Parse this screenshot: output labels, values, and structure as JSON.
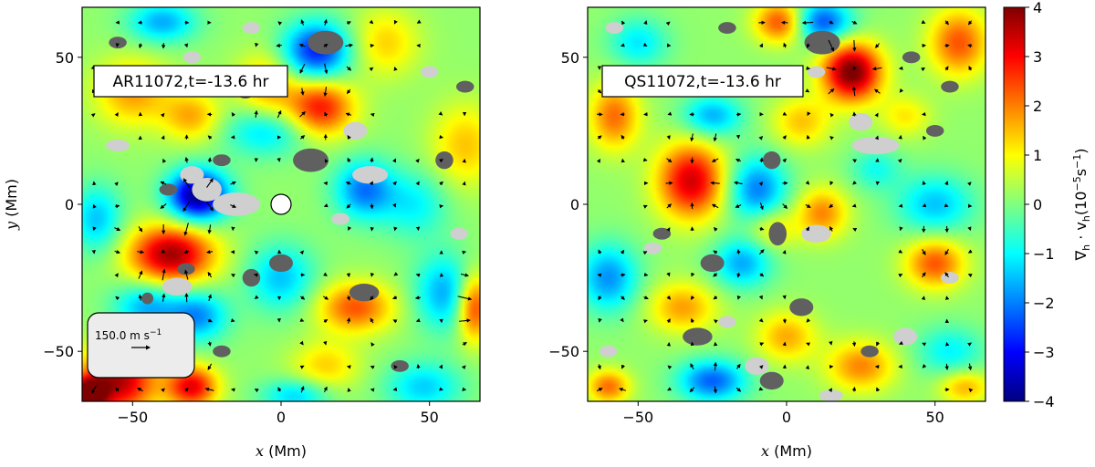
{
  "chart_data": [
    {
      "type": "heatmap",
      "panel": "left",
      "annotation": "AR11072,t=-13.6 hr",
      "xlabel_var": "x",
      "xlabel_unit": "(Mm)",
      "ylabel_var": "y",
      "ylabel_unit": "(Mm)",
      "xlim": [
        -67,
        67
      ],
      "ylim": [
        -67,
        67
      ],
      "xticks": [
        -50,
        0,
        50
      ],
      "yticks": [
        -50,
        0,
        50
      ],
      "xtick_labels": [
        "−50",
        "0",
        "50"
      ],
      "ytick_labels": [
        "−50",
        "0",
        "50"
      ],
      "quiver_key": {
        "label": "150.0 m s",
        "exponent": "−1",
        "speed": 150.0
      },
      "marker": {
        "x": 0,
        "y": 0,
        "color": "#ffffff"
      },
      "blobs": [
        {
          "x": -28,
          "y": 3,
          "sx": 7,
          "sy": 6,
          "value": -4.2
        },
        {
          "x": -37,
          "y": -17,
          "sx": 10,
          "sy": 7,
          "value": 3.6
        },
        {
          "x": 12,
          "y": 52,
          "sx": 8,
          "sy": 7,
          "value": -3.0
        },
        {
          "x": 13,
          "y": 33,
          "sx": 8,
          "sy": 7,
          "value": 2.8
        },
        {
          "x": -50,
          "y": 38,
          "sx": 9,
          "sy": 8,
          "value": 1.6
        },
        {
          "x": -30,
          "y": 30,
          "sx": 7,
          "sy": 6,
          "value": 1.5
        },
        {
          "x": -5,
          "y": 40,
          "sx": 7,
          "sy": 8,
          "value": 1.5
        },
        {
          "x": -40,
          "y": 62,
          "sx": 8,
          "sy": 5,
          "value": -1.8
        },
        {
          "x": -5,
          "y": 25,
          "sx": 10,
          "sy": 6,
          "value": -1.5
        },
        {
          "x": 35,
          "y": 55,
          "sx": 8,
          "sy": 8,
          "value": 1.2
        },
        {
          "x": 28,
          "y": 5,
          "sx": 7,
          "sy": 7,
          "value": -2.2
        },
        {
          "x": -62,
          "y": -5,
          "sx": 6,
          "sy": 8,
          "value": -1.6
        },
        {
          "x": -45,
          "y": -35,
          "sx": 8,
          "sy": 6,
          "value": -1.8
        },
        {
          "x": -28,
          "y": -38,
          "sx": 7,
          "sy": 6,
          "value": -2.0
        },
        {
          "x": -55,
          "y": -60,
          "sx": 9,
          "sy": 8,
          "value": 3.5
        },
        {
          "x": -30,
          "y": -62,
          "sx": 6,
          "sy": 5,
          "value": 3.0
        },
        {
          "x": -65,
          "y": -65,
          "sx": 4,
          "sy": 4,
          "value": 4.0
        },
        {
          "x": 25,
          "y": -35,
          "sx": 9,
          "sy": 6,
          "value": 2.2
        },
        {
          "x": 0,
          "y": -25,
          "sx": 8,
          "sy": 8,
          "value": -1.6
        },
        {
          "x": 55,
          "y": -30,
          "sx": 7,
          "sy": 9,
          "value": -1.8
        },
        {
          "x": 65,
          "y": -35,
          "sx": 4,
          "sy": 8,
          "value": 2.6
        },
        {
          "x": 62,
          "y": 20,
          "sx": 8,
          "sy": 10,
          "value": 1.3
        },
        {
          "x": 48,
          "y": -62,
          "sx": 9,
          "sy": 6,
          "value": -1.5
        },
        {
          "x": 15,
          "y": -55,
          "sx": 8,
          "sy": 6,
          "value": 1.2
        },
        {
          "x": 5,
          "y": -65,
          "sx": 8,
          "sy": 4,
          "value": -1.5
        },
        {
          "x": 45,
          "y": 0,
          "sx": 8,
          "sy": 8,
          "value": -1.2
        }
      ],
      "patches": [
        {
          "x": -25,
          "y": 5,
          "rx": 5,
          "ry": 4,
          "shade": "light"
        },
        {
          "x": -15,
          "y": 0,
          "rx": 8,
          "ry": 4,
          "shade": "light"
        },
        {
          "x": -30,
          "y": 10,
          "rx": 4,
          "ry": 3,
          "shade": "light"
        },
        {
          "x": 30,
          "y": 10,
          "rx": 6,
          "ry": 3,
          "shade": "light"
        },
        {
          "x": 25,
          "y": 25,
          "rx": 4,
          "ry": 3,
          "shade": "light"
        },
        {
          "x": -35,
          "y": -28,
          "rx": 5,
          "ry": 3,
          "shade": "light"
        },
        {
          "x": -55,
          "y": 20,
          "rx": 4,
          "ry": 2,
          "shade": "light"
        },
        {
          "x": -10,
          "y": 60,
          "rx": 3,
          "ry": 2,
          "shade": "light"
        },
        {
          "x": 50,
          "y": 45,
          "rx": 3,
          "ry": 2,
          "shade": "light"
        },
        {
          "x": -30,
          "y": 50,
          "rx": 3,
          "ry": 2,
          "shade": "light"
        },
        {
          "x": 60,
          "y": -10,
          "rx": 3,
          "ry": 2,
          "shade": "light"
        },
        {
          "x": 20,
          "y": -5,
          "rx": 3,
          "ry": 2,
          "shade": "light"
        },
        {
          "x": 15,
          "y": 55,
          "rx": 6,
          "ry": 4,
          "shade": "dark"
        },
        {
          "x": 10,
          "y": 15,
          "rx": 6,
          "ry": 4,
          "shade": "dark"
        },
        {
          "x": -20,
          "y": 15,
          "rx": 3,
          "ry": 2,
          "shade": "dark"
        },
        {
          "x": -38,
          "y": 5,
          "rx": 3,
          "ry": 2,
          "shade": "dark"
        },
        {
          "x": -32,
          "y": -22,
          "rx": 3,
          "ry": 2,
          "shade": "dark"
        },
        {
          "x": -45,
          "y": -32,
          "rx": 2,
          "ry": 2,
          "shade": "dark"
        },
        {
          "x": -45,
          "y": -50,
          "rx": 3,
          "ry": 3,
          "shade": "dark"
        },
        {
          "x": 0,
          "y": -20,
          "rx": 4,
          "ry": 3,
          "shade": "dark"
        },
        {
          "x": 28,
          "y": -30,
          "rx": 5,
          "ry": 3,
          "shade": "dark"
        },
        {
          "x": -10,
          "y": -25,
          "rx": 3,
          "ry": 3,
          "shade": "dark"
        },
        {
          "x": 55,
          "y": 15,
          "rx": 3,
          "ry": 3,
          "shade": "dark"
        },
        {
          "x": -55,
          "y": 55,
          "rx": 3,
          "ry": 2,
          "shade": "dark"
        },
        {
          "x": 40,
          "y": -55,
          "rx": 3,
          "ry": 2,
          "shade": "dark"
        },
        {
          "x": -20,
          "y": -50,
          "rx": 3,
          "ry": 2,
          "shade": "dark"
        },
        {
          "x": -12,
          "y": 38,
          "rx": 3,
          "ry": 2,
          "shade": "dark"
        },
        {
          "x": 62,
          "y": 40,
          "rx": 3,
          "ry": 2,
          "shade": "dark"
        }
      ]
    },
    {
      "type": "heatmap",
      "panel": "right",
      "annotation": "QS11072,t=-13.6 hr",
      "xlabel_var": "x",
      "xlabel_unit": "(Mm)",
      "xlim": [
        -67,
        67
      ],
      "ylim": [
        -67,
        67
      ],
      "xticks": [
        -50,
        0,
        50
      ],
      "yticks": [
        -50,
        0,
        50
      ],
      "xtick_labels": [
        "−50",
        "0",
        "50"
      ],
      "ytick_labels": [
        "−50",
        "0",
        "50"
      ],
      "blobs": [
        {
          "x": 22,
          "y": 45,
          "sx": 7,
          "sy": 7,
          "value": 4.0
        },
        {
          "x": -32,
          "y": 8,
          "sx": 8,
          "sy": 9,
          "value": 3.2
        },
        {
          "x": 12,
          "y": 62,
          "sx": 7,
          "sy": 5,
          "value": -2.6
        },
        {
          "x": -2,
          "y": 62,
          "sx": 6,
          "sy": 5,
          "value": 2.4
        },
        {
          "x": 58,
          "y": 55,
          "sx": 7,
          "sy": 8,
          "value": 2.2
        },
        {
          "x": -58,
          "y": 30,
          "sx": 6,
          "sy": 8,
          "value": 2.0
        },
        {
          "x": -25,
          "y": 30,
          "sx": 7,
          "sy": 5,
          "value": -1.8
        },
        {
          "x": 5,
          "y": 28,
          "sx": 7,
          "sy": 6,
          "value": 1.3
        },
        {
          "x": -10,
          "y": 5,
          "sx": 7,
          "sy": 8,
          "value": -2.2
        },
        {
          "x": 12,
          "y": -3,
          "sx": 6,
          "sy": 6,
          "value": 1.8
        },
        {
          "x": 50,
          "y": 0,
          "sx": 9,
          "sy": 7,
          "value": -1.6
        },
        {
          "x": 50,
          "y": -20,
          "sx": 7,
          "sy": 6,
          "value": 2.2
        },
        {
          "x": -60,
          "y": -25,
          "sx": 7,
          "sy": 8,
          "value": -2.0
        },
        {
          "x": -35,
          "y": -35,
          "sx": 8,
          "sy": 6,
          "value": 1.6
        },
        {
          "x": -15,
          "y": -20,
          "sx": 7,
          "sy": 6,
          "value": -1.8
        },
        {
          "x": 0,
          "y": -45,
          "sx": 7,
          "sy": 6,
          "value": 1.5
        },
        {
          "x": -25,
          "y": -60,
          "sx": 8,
          "sy": 5,
          "value": -2.4
        },
        {
          "x": 25,
          "y": -55,
          "sx": 8,
          "sy": 6,
          "value": 1.8
        },
        {
          "x": 55,
          "y": -50,
          "sx": 8,
          "sy": 6,
          "value": -1.2
        },
        {
          "x": -60,
          "y": -62,
          "sx": 5,
          "sy": 4,
          "value": 2.0
        },
        {
          "x": 60,
          "y": -62,
          "sx": 6,
          "sy": 4,
          "value": 1.5
        },
        {
          "x": 30,
          "y": 12,
          "sx": 6,
          "sy": 5,
          "value": -1.0
        },
        {
          "x": -50,
          "y": 55,
          "sx": 7,
          "sy": 6,
          "value": -1.3
        },
        {
          "x": 40,
          "y": 30,
          "sx": 6,
          "sy": 5,
          "value": 1.0
        },
        {
          "x": -5,
          "y": -8,
          "sx": 6,
          "sy": 5,
          "value": 1.2
        }
      ],
      "patches": [
        {
          "x": 30,
          "y": 20,
          "rx": 8,
          "ry": 3,
          "shade": "light"
        },
        {
          "x": 25,
          "y": 28,
          "rx": 4,
          "ry": 3,
          "shade": "light"
        },
        {
          "x": 10,
          "y": -10,
          "rx": 5,
          "ry": 3,
          "shade": "light"
        },
        {
          "x": -58,
          "y": 60,
          "rx": 3,
          "ry": 2,
          "shade": "light"
        },
        {
          "x": 10,
          "y": 45,
          "rx": 3,
          "ry": 2,
          "shade": "light"
        },
        {
          "x": -10,
          "y": -55,
          "rx": 4,
          "ry": 3,
          "shade": "light"
        },
        {
          "x": 40,
          "y": -45,
          "rx": 4,
          "ry": 3,
          "shade": "light"
        },
        {
          "x": -20,
          "y": -40,
          "rx": 3,
          "ry": 2,
          "shade": "light"
        },
        {
          "x": 55,
          "y": -25,
          "rx": 3,
          "ry": 2,
          "shade": "light"
        },
        {
          "x": -45,
          "y": -15,
          "rx": 3,
          "ry": 2,
          "shade": "light"
        },
        {
          "x": 15,
          "y": -65,
          "rx": 4,
          "ry": 2,
          "shade": "light"
        },
        {
          "x": -60,
          "y": -50,
          "rx": 3,
          "ry": 2,
          "shade": "light"
        },
        {
          "x": 12,
          "y": 55,
          "rx": 6,
          "ry": 4,
          "shade": "dark"
        },
        {
          "x": 42,
          "y": 50,
          "rx": 3,
          "ry": 2,
          "shade": "dark"
        },
        {
          "x": -5,
          "y": 15,
          "rx": 3,
          "ry": 3,
          "shade": "dark"
        },
        {
          "x": -42,
          "y": -10,
          "rx": 3,
          "ry": 2,
          "shade": "dark"
        },
        {
          "x": -25,
          "y": -20,
          "rx": 4,
          "ry": 3,
          "shade": "dark"
        },
        {
          "x": -30,
          "y": -45,
          "rx": 5,
          "ry": 3,
          "shade": "dark"
        },
        {
          "x": 5,
          "y": -35,
          "rx": 4,
          "ry": 3,
          "shade": "dark"
        },
        {
          "x": -5,
          "y": -60,
          "rx": 4,
          "ry": 3,
          "shade": "dark"
        },
        {
          "x": 28,
          "y": -50,
          "rx": 3,
          "ry": 2,
          "shade": "dark"
        },
        {
          "x": -55,
          "y": 40,
          "rx": 3,
          "ry": 2,
          "shade": "dark"
        },
        {
          "x": 55,
          "y": 40,
          "rx": 3,
          "ry": 2,
          "shade": "dark"
        },
        {
          "x": -20,
          "y": 60,
          "rx": 3,
          "ry": 2,
          "shade": "dark"
        },
        {
          "x": -3,
          "y": -10,
          "rx": 3,
          "ry": 4,
          "shade": "dark"
        },
        {
          "x": 50,
          "y": 25,
          "rx": 3,
          "ry": 2,
          "shade": "dark"
        }
      ]
    }
  ],
  "colorbar": {
    "min": -4,
    "max": 4,
    "ticks": [
      4,
      3,
      2,
      1,
      0,
      -1,
      -2,
      -3,
      -4
    ],
    "tick_labels": [
      "4",
      "3",
      "2",
      "1",
      "0",
      "−1",
      "−2",
      "−3",
      "−4"
    ],
    "label_main": "∇",
    "label_sub1": "h",
    "label_mid": " · v",
    "label_sub2": "h",
    "label_unit": "(10",
    "label_exp1": "−5",
    "label_unit2": "s",
    "label_exp2": "−1",
    "label_close": ")"
  }
}
